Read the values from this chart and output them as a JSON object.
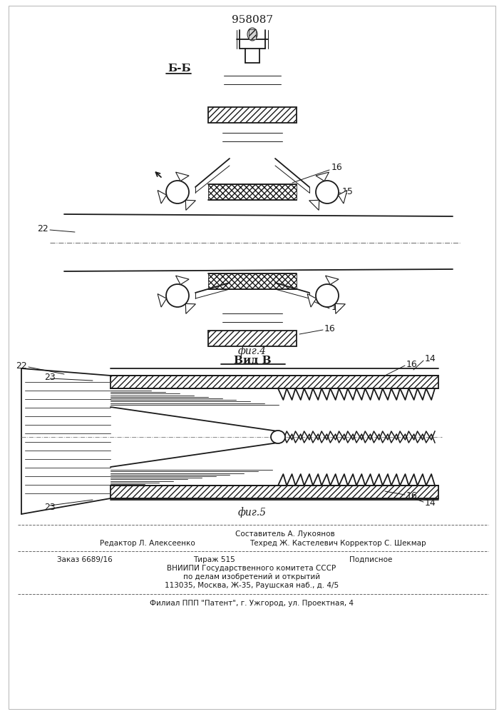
{
  "title": "958087",
  "fig4_label": "фиг.4",
  "fig5_label": "фиг.5",
  "section_bb": "Б-Б",
  "view_b": "Вид В",
  "label_15": "15",
  "label_16": "16",
  "label_22": "22",
  "label_14": "14",
  "label_23": "23",
  "footer_author": "Составитель А. Лукоянов",
  "footer_editor": "Редактор Л. Алексеенко",
  "footer_tech": "Техред Ж. Кастелевич Корректор С. Шекмар",
  "footer_order": "Заказ 6689/16",
  "footer_tirazh": "Тираж 515",
  "footer_podp": "Подписное",
  "footer_vniip1": "ВНИИПИ Государственного комитета СССР",
  "footer_vniip2": "по делам изобретений и открытий",
  "footer_vniip3": "113035, Москва, Ж-35, Раушская наб., д. 4/5",
  "footer_filial": "Филиал ППП \"Патент\", г. Ужгород, ул. Проектная, 4",
  "bg_color": "#ffffff",
  "line_color": "#1a1a1a"
}
